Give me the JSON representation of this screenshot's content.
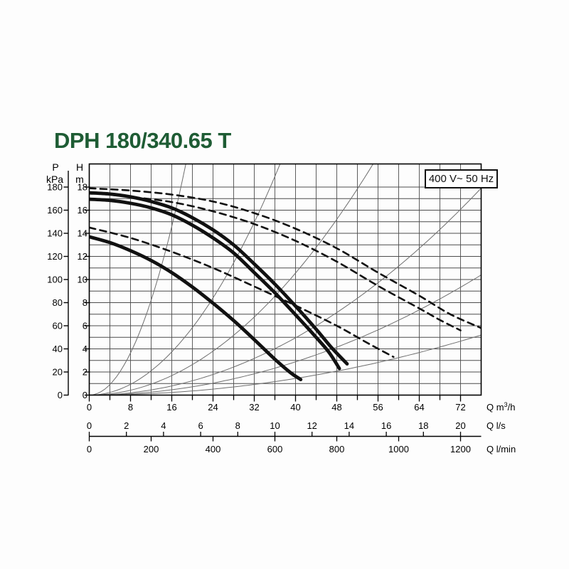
{
  "title": {
    "text": "DPH 180/340.65 T",
    "color": "#1e5c34"
  },
  "annotation_box": {
    "text": "400 V~ 50 Hz"
  },
  "chart_data": {
    "type": "line",
    "title": "DPH 180/340.65 T",
    "grid": {
      "on": true,
      "x_minor_step_m3h": 4,
      "y_minor_step_m": 1,
      "color": "#4d4d4d"
    },
    "axes": {
      "y_pressure": {
        "label": "P",
        "unit": "kPa",
        "ticks": [
          0,
          20,
          40,
          60,
          80,
          100,
          120,
          140,
          160,
          180
        ],
        "range": [
          0,
          200
        ]
      },
      "y_head": {
        "label": "H",
        "unit": "m",
        "ticks": [
          0,
          2,
          4,
          6,
          8,
          10,
          12,
          14,
          16,
          18
        ],
        "range": [
          0,
          20
        ]
      },
      "x_flow_m3h": {
        "label": "Q m³/h",
        "label_parts": {
          "pre": "Q m",
          "sup": "3",
          "post": "/h"
        },
        "ticks": [
          0,
          8,
          16,
          24,
          32,
          40,
          48,
          56,
          64,
          72
        ],
        "range": [
          0,
          76
        ]
      },
      "x_flow_ls": {
        "label": "Q l/s",
        "ticks": [
          0,
          2,
          4,
          6,
          8,
          10,
          12,
          14,
          16,
          18,
          20
        ]
      },
      "x_flow_lmin": {
        "label": "Q l/min",
        "ticks": [
          0,
          200,
          400,
          600,
          800,
          1000,
          1200
        ]
      }
    },
    "series": [
      {
        "name": "pump-curve-solid-1",
        "style": "solid",
        "color": "#111111",
        "width": 4.8,
        "points": [
          [
            0,
            17.5
          ],
          [
            4,
            17.4
          ],
          [
            8,
            17.15
          ],
          [
            12,
            16.75
          ],
          [
            16,
            16.2
          ],
          [
            20,
            15.35
          ],
          [
            24,
            14.3
          ],
          [
            28,
            13.0
          ],
          [
            32,
            11.35
          ],
          [
            36,
            9.6
          ],
          [
            40,
            7.7
          ],
          [
            44,
            5.7
          ],
          [
            47,
            4.1
          ],
          [
            50,
            2.7
          ]
        ]
      },
      {
        "name": "pump-curve-solid-2",
        "style": "solid",
        "color": "#111111",
        "width": 4.8,
        "points": [
          [
            0,
            16.95
          ],
          [
            4,
            16.85
          ],
          [
            8,
            16.6
          ],
          [
            12,
            16.2
          ],
          [
            16,
            15.6
          ],
          [
            20,
            14.7
          ],
          [
            24,
            13.6
          ],
          [
            28,
            12.3
          ],
          [
            32,
            10.6
          ],
          [
            36,
            8.85
          ],
          [
            40,
            6.95
          ],
          [
            44,
            5.0
          ],
          [
            46.5,
            3.7
          ],
          [
            48.5,
            2.3
          ]
        ]
      },
      {
        "name": "pump-curve-solid-3",
        "style": "solid",
        "color": "#111111",
        "width": 4.8,
        "points": [
          [
            0,
            13.7
          ],
          [
            4,
            13.2
          ],
          [
            8,
            12.5
          ],
          [
            12,
            11.65
          ],
          [
            16,
            10.6
          ],
          [
            20,
            9.35
          ],
          [
            24,
            7.95
          ],
          [
            28,
            6.45
          ],
          [
            32,
            4.8
          ],
          [
            36,
            3.1
          ],
          [
            39,
            1.95
          ],
          [
            41,
            1.35
          ]
        ]
      },
      {
        "name": "pump-curve-dashed-upper",
        "style": "dashed",
        "color": "#111111",
        "width": 2.6,
        "points": [
          [
            0,
            17.9
          ],
          [
            8,
            17.7
          ],
          [
            16,
            17.35
          ],
          [
            24,
            16.75
          ],
          [
            32,
            15.75
          ],
          [
            40,
            14.4
          ],
          [
            48,
            12.7
          ],
          [
            56,
            10.6
          ],
          [
            64,
            8.6
          ],
          [
            70,
            7.0
          ],
          [
            76,
            5.8
          ]
        ]
      },
      {
        "name": "pump-curve-dashed-middle",
        "style": "dashed",
        "color": "#111111",
        "width": 2.6,
        "points": [
          [
            0,
            17.5
          ],
          [
            8,
            17.15
          ],
          [
            16,
            16.7
          ],
          [
            24,
            15.9
          ],
          [
            32,
            14.8
          ],
          [
            40,
            13.35
          ],
          [
            48,
            11.55
          ],
          [
            56,
            9.45
          ],
          [
            64,
            7.5
          ],
          [
            68,
            6.5
          ],
          [
            72,
            5.6
          ]
        ]
      },
      {
        "name": "pump-curve-dashed-lower",
        "style": "dashed",
        "color": "#111111",
        "width": 2.6,
        "points": [
          [
            0,
            14.5
          ],
          [
            8,
            13.6
          ],
          [
            16,
            12.4
          ],
          [
            24,
            11.0
          ],
          [
            32,
            9.4
          ],
          [
            40,
            7.75
          ],
          [
            48,
            6.0
          ],
          [
            54,
            4.5
          ],
          [
            59,
            3.3
          ]
        ]
      }
    ],
    "system_curves": {
      "description": "thin parabolic system characteristic curves H = k·Q²",
      "color": "#6e6e6e",
      "width": 1,
      "k_values": [
        0.057,
        0.0146,
        0.0066,
        0.0031,
        0.0018,
        0.0009
      ]
    }
  }
}
